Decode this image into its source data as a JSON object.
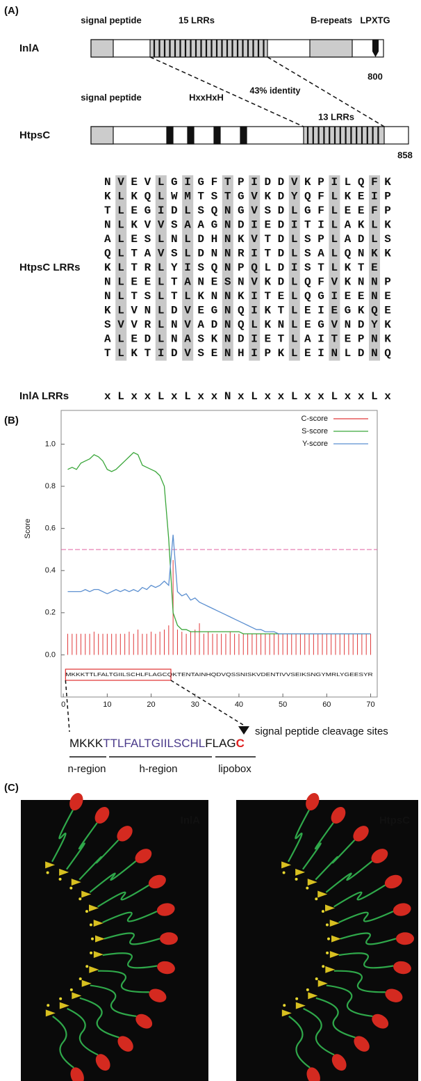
{
  "panel_a": {
    "label": "(A)",
    "inla": {
      "name": "InlA",
      "domains": [
        "signal peptide",
        "15 LRRs",
        "B-repeats",
        "LPXTG"
      ],
      "length": 800
    },
    "identity": "43% identity",
    "htpsc": {
      "name": "HtpsC",
      "domains": [
        "signal peptide",
        "HxxHxH",
        "13 LRRs"
      ],
      "length": 858
    },
    "alignment": {
      "label": "HtpsC LRRs",
      "rows": [
        "N V E V L G I G F T P I D D V K P I L Q F K",
        "K L K Q L W M T S T G V K D Y Q F L K E I P",
        "T L E G I D L S Q N G V S D L G F L E E F P",
        "N L K V V S A A G N D I E D I T I L A K L K",
        "A L E S L N L D H N K V T D L S P L A D L S",
        "Q L T A V S L D N N R I T D L S A L Q N K K",
        "K L T R L Y I S Q N P Q L D I S T L K T E",
        "N L E E L T A N E S N V K D L Q F V K N N P",
        "N L T S L T L K N N K I T E L Q G I E E N E",
        "K L V N L D V E G N Q I K T L E I E G K Q E",
        "S V V R L N V A D N Q L K N L E G V N D Y K",
        "A L E D L N A S K N D I E T L A I T E P N K",
        "T L K T I D V S E N H I P K L E I N L D N Q"
      ],
      "consensus_label": "InlA LRRs",
      "consensus": "x L x x L x L x x N x L x x L x x L x x L x"
    }
  },
  "chart_data": {
    "type": "line",
    "panel_label": "(B)",
    "y_label": "Score",
    "x": [
      1,
      2,
      3,
      4,
      5,
      6,
      7,
      8,
      9,
      10,
      11,
      12,
      13,
      14,
      15,
      16,
      17,
      18,
      19,
      20,
      21,
      22,
      23,
      24,
      25,
      26,
      27,
      28,
      29,
      30,
      31,
      32,
      33,
      34,
      35,
      36,
      37,
      38,
      39,
      40,
      41,
      42,
      43,
      44,
      45,
      46,
      47,
      48,
      49,
      50,
      51,
      52,
      53,
      54,
      55,
      56,
      57,
      58,
      59,
      60,
      61,
      62,
      63,
      64,
      65,
      66,
      67,
      68,
      69,
      70
    ],
    "series": [
      {
        "name": "C-score",
        "color": "#e0393a",
        "style": "impulse",
        "values": [
          0.1,
          0.1,
          0.1,
          0.1,
          0.1,
          0.1,
          0.11,
          0.1,
          0.1,
          0.1,
          0.1,
          0.1,
          0.1,
          0.1,
          0.11,
          0.1,
          0.12,
          0.1,
          0.1,
          0.11,
          0.1,
          0.11,
          0.12,
          0.14,
          0.45,
          0.12,
          0.11,
          0.1,
          0.11,
          0.12,
          0.15,
          0.1,
          0.11,
          0.1,
          0.1,
          0.1,
          0.1,
          0.11,
          0.1,
          0.1,
          0.1,
          0.1,
          0.1,
          0.1,
          0.1,
          0.1,
          0.1,
          0.1,
          0.1,
          0.1,
          0.1,
          0.1,
          0.1,
          0.1,
          0.1,
          0.1,
          0.1,
          0.1,
          0.1,
          0.1,
          0.1,
          0.1,
          0.1,
          0.1,
          0.1,
          0.1,
          0.1,
          0.1,
          0.1,
          0.1
        ]
      },
      {
        "name": "S-score",
        "color": "#3aa63a",
        "style": "line",
        "values": [
          0.88,
          0.89,
          0.88,
          0.91,
          0.92,
          0.93,
          0.95,
          0.94,
          0.92,
          0.88,
          0.87,
          0.88,
          0.9,
          0.92,
          0.94,
          0.96,
          0.95,
          0.9,
          0.89,
          0.88,
          0.87,
          0.85,
          0.8,
          0.55,
          0.2,
          0.14,
          0.12,
          0.12,
          0.11,
          0.11,
          0.11,
          0.11,
          0.11,
          0.11,
          0.11,
          0.11,
          0.11,
          0.11,
          0.11,
          0.11,
          0.1,
          0.1,
          0.1,
          0.1,
          0.1,
          0.1,
          0.1,
          0.1,
          0.1,
          0.1,
          0.1,
          0.1,
          0.1,
          0.1,
          0.1,
          0.1,
          0.1,
          0.1,
          0.1,
          0.1,
          0.1,
          0.1,
          0.1,
          0.1,
          0.1,
          0.1,
          0.1,
          0.1,
          0.1,
          0.1
        ]
      },
      {
        "name": "Y-score",
        "color": "#5b8fd0",
        "style": "line",
        "values": [
          0.3,
          0.3,
          0.3,
          0.3,
          0.31,
          0.3,
          0.31,
          0.31,
          0.3,
          0.29,
          0.3,
          0.31,
          0.3,
          0.31,
          0.3,
          0.31,
          0.3,
          0.32,
          0.31,
          0.33,
          0.32,
          0.33,
          0.35,
          0.33,
          0.57,
          0.3,
          0.28,
          0.29,
          0.26,
          0.27,
          0.25,
          0.24,
          0.23,
          0.22,
          0.21,
          0.2,
          0.19,
          0.18,
          0.17,
          0.16,
          0.15,
          0.14,
          0.13,
          0.12,
          0.12,
          0.11,
          0.11,
          0.11,
          0.1,
          0.1,
          0.1,
          0.1,
          0.1,
          0.1,
          0.1,
          0.1,
          0.1,
          0.1,
          0.1,
          0.1,
          0.1,
          0.1,
          0.1,
          0.1,
          0.1,
          0.1,
          0.1,
          0.1,
          0.1,
          0.1
        ]
      }
    ],
    "cutoff": 0.5,
    "cutoff_color": "#e060a0",
    "xlim": [
      -0.5,
      71.5
    ],
    "ylim": [
      -0.2,
      1.16
    ],
    "xticks": [
      0,
      10,
      20,
      30,
      40,
      50,
      60,
      70
    ],
    "yticks": [
      {
        "value": 0,
        "label": "0.0"
      },
      {
        "value": 0.2,
        "label": "0.2"
      },
      {
        "value": 0.4,
        "label": "0.4"
      },
      {
        "value": 0.6,
        "label": "0.6"
      },
      {
        "value": 0.8,
        "label": "0.8"
      },
      {
        "value": 1,
        "label": "1.0"
      }
    ],
    "legend": "upper right",
    "sequence": "MKKKTTLFALTGIILSCHLFLAGCQKTENTAINHQDVQSSNISKVDENTIVVSEIKSNGYMRLYGEESYR"
  },
  "signal_peptide": {
    "segments": [
      {
        "text": "MKKK",
        "color": "#111111"
      },
      {
        "text": "TTLFALTGIILSCHL",
        "color": "#4a3a8a"
      },
      {
        "text": "FLAG",
        "color": "#111111"
      },
      {
        "text": "C",
        "color": "#e02020"
      }
    ],
    "regions": [
      "n-region",
      "h-region",
      "lipobox"
    ],
    "cleavage_label": "signal peptide cleavage sites"
  },
  "panel_c": {
    "label": "(C)",
    "images": [
      "InlA",
      "HtpsC"
    ]
  }
}
